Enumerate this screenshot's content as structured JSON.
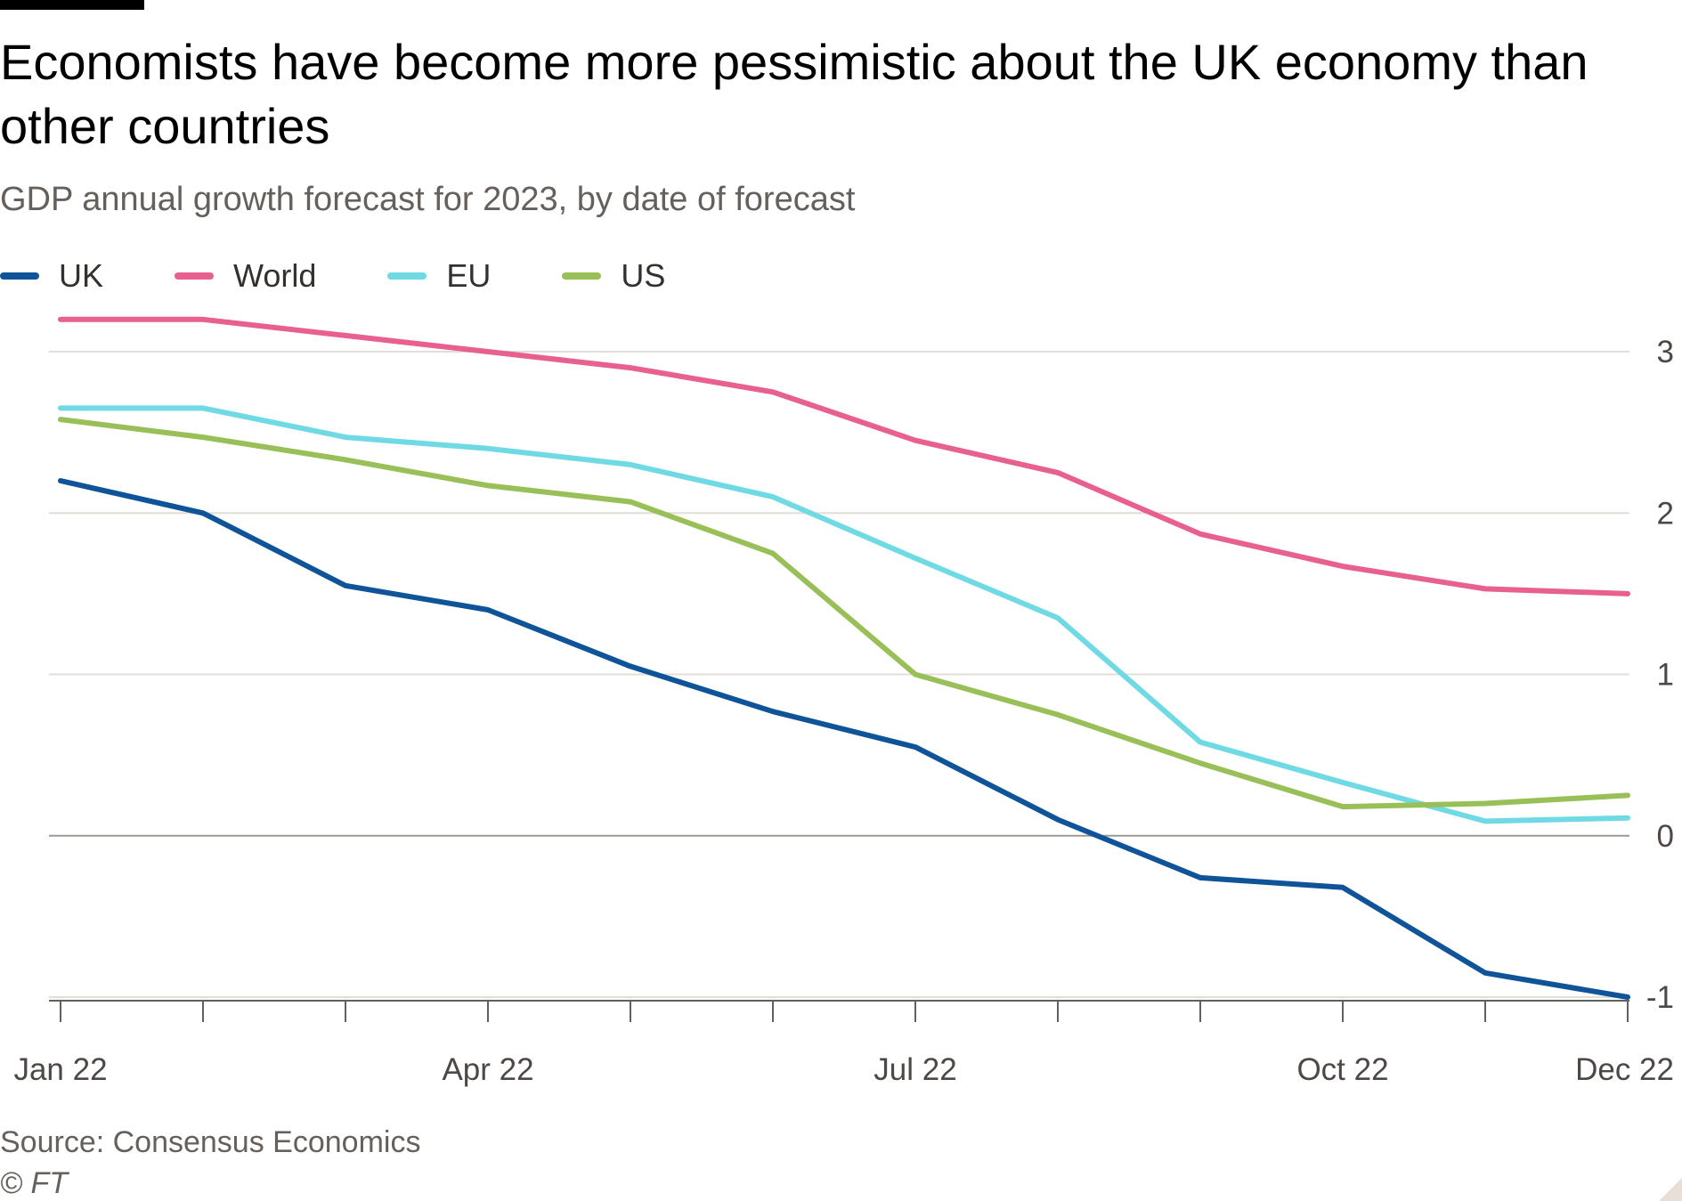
{
  "header": {
    "title": "Economists have become more pessimistic about the UK economy than other countries",
    "subtitle": "GDP annual growth forecast for 2023, by date of forecast"
  },
  "footer": {
    "source": "Source: Consensus Economics",
    "copyright": "© FT"
  },
  "chart_data": {
    "type": "line",
    "title": "Economists have become more pessimistic about the UK economy than other countries",
    "subtitle": "GDP annual growth forecast for 2023, by date of forecast",
    "xlabel": "",
    "ylabel": "",
    "x": [
      "Jan 22",
      "Feb 22",
      "Mar 22",
      "Apr 22",
      "May 22",
      "Jun 22",
      "Jul 22",
      "Aug 22",
      "Sep 22",
      "Oct 22",
      "Nov 22",
      "Dec 22"
    ],
    "x_tick_labels": [
      "Jan 22",
      "Apr 22",
      "Jul 22",
      "Oct 22",
      "Dec 22"
    ],
    "ylim": [
      -1,
      3
    ],
    "y_ticks": [
      -1,
      0,
      1,
      2,
      3
    ],
    "y_axis_position": "right",
    "grid": true,
    "legend_position": "top-left",
    "series": [
      {
        "name": "UK",
        "color": "#0f5499",
        "values": [
          2.2,
          2.0,
          1.55,
          1.4,
          1.05,
          0.77,
          0.55,
          0.1,
          -0.26,
          -0.32,
          -0.85,
          -1.0
        ]
      },
      {
        "name": "World",
        "color": "#e8608f",
        "values": [
          3.2,
          3.2,
          3.1,
          3.0,
          2.9,
          2.75,
          2.45,
          2.25,
          1.87,
          1.67,
          1.53,
          1.5
        ]
      },
      {
        "name": "EU",
        "color": "#6fdae4",
        "values": [
          2.65,
          2.65,
          2.47,
          2.4,
          2.3,
          2.1,
          1.72,
          1.35,
          0.58,
          0.33,
          0.09,
          0.11
        ]
      },
      {
        "name": "US",
        "color": "#99c058",
        "values": [
          2.58,
          2.47,
          2.33,
          2.17,
          2.07,
          1.75,
          1.0,
          0.75,
          0.45,
          0.18,
          0.2,
          0.25
        ]
      }
    ]
  }
}
